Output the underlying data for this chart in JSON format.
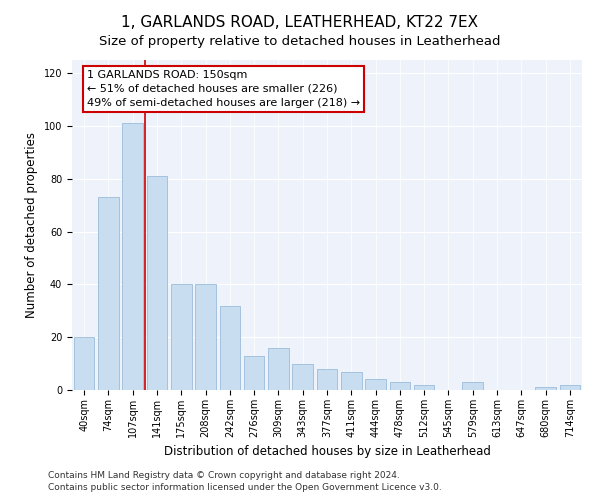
{
  "title": "1, GARLANDS ROAD, LEATHERHEAD, KT22 7EX",
  "subtitle": "Size of property relative to detached houses in Leatherhead",
  "xlabel": "Distribution of detached houses by size in Leatherhead",
  "ylabel": "Number of detached properties",
  "categories": [
    "40sqm",
    "74sqm",
    "107sqm",
    "141sqm",
    "175sqm",
    "208sqm",
    "242sqm",
    "276sqm",
    "309sqm",
    "343sqm",
    "377sqm",
    "411sqm",
    "444sqm",
    "478sqm",
    "512sqm",
    "545sqm",
    "579sqm",
    "613sqm",
    "647sqm",
    "680sqm",
    "714sqm"
  ],
  "values": [
    20,
    73,
    101,
    81,
    40,
    40,
    32,
    13,
    16,
    10,
    8,
    7,
    4,
    3,
    2,
    0,
    3,
    0,
    0,
    1,
    2
  ],
  "bar_color": "#c8ddf0",
  "bar_edge_color": "#9bbcda",
  "vline_index": 2,
  "vline_color": "#cc0000",
  "annotation_text": "1 GARLANDS ROAD: 150sqm\n← 51% of detached houses are smaller (226)\n49% of semi-detached houses are larger (218) →",
  "annotation_box_facecolor": "#ffffff",
  "annotation_box_edgecolor": "#cc0000",
  "ylim": [
    0,
    125
  ],
  "yticks": [
    0,
    20,
    40,
    60,
    80,
    100,
    120
  ],
  "footer_text": "Contains HM Land Registry data © Crown copyright and database right 2024.\nContains public sector information licensed under the Open Government Licence v3.0.",
  "bg_color": "#eef2fa",
  "title_fontsize": 11,
  "subtitle_fontsize": 9.5,
  "axis_label_fontsize": 8.5,
  "tick_fontsize": 7,
  "annotation_fontsize": 8,
  "footer_fontsize": 6.5
}
